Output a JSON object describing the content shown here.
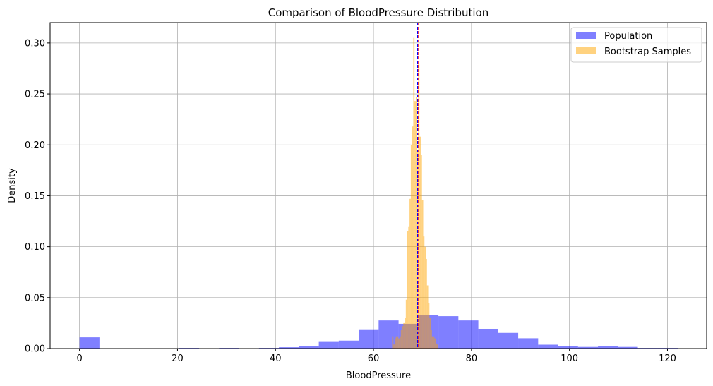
{
  "chart_data": {
    "type": "bar",
    "title": "Comparison of BloodPressure Distribution",
    "xlabel": "BloodPressure",
    "ylabel": "Density",
    "xlim": [
      -6,
      128
    ],
    "ylim": [
      0,
      0.32
    ],
    "xticks": [
      0,
      20,
      40,
      60,
      80,
      100,
      120
    ],
    "yticks": [
      0.0,
      0.05,
      0.1,
      0.15,
      0.2,
      0.25,
      0.3
    ],
    "xtick_labels": [
      "0",
      "20",
      "40",
      "60",
      "80",
      "100",
      "120"
    ],
    "ytick_labels": [
      "0.00",
      "0.05",
      "0.10",
      "0.15",
      "0.20",
      "0.25",
      "0.30"
    ],
    "grid": true,
    "legend_position": "top-right",
    "series": [
      {
        "name": "Population",
        "color": "#0000ff",
        "opacity": 0.5,
        "bin_start": 0,
        "bin_width": 4.07,
        "values": [
          0.011,
          0.0,
          0.0,
          0.0,
          0.0,
          0.0006,
          0.0,
          0.0006,
          0.0,
          0.0006,
          0.0013,
          0.0022,
          0.0072,
          0.0078,
          0.0189,
          0.0276,
          0.0243,
          0.0327,
          0.0318,
          0.0276,
          0.0194,
          0.0154,
          0.0101,
          0.0038,
          0.0023,
          0.0016,
          0.0021,
          0.0016,
          0.0006,
          0.0006
        ]
      },
      {
        "name": "Bootstrap Samples",
        "color": "#ffa500",
        "opacity": 0.5,
        "bin_start": 63.8,
        "bin_width": 0.254,
        "values": [
          0.012,
          0.004,
          0.01,
          0.012,
          0.012,
          0.01,
          0.012,
          0.018,
          0.022,
          0.025,
          0.03,
          0.048,
          0.115,
          0.12,
          0.147,
          0.2,
          0.218,
          0.305,
          0.243,
          0.247,
          0.193,
          0.28,
          0.208,
          0.19,
          0.146,
          0.11,
          0.1,
          0.088,
          0.062,
          0.045,
          0.03,
          0.018,
          0.012,
          0.012,
          0.01,
          0.005,
          0.004
        ]
      }
    ],
    "reference_lines": [
      {
        "x": 69.1,
        "color": "#ff0000",
        "style": "dashed"
      },
      {
        "x": 69.0,
        "color": "#0000ff",
        "style": "dashed"
      }
    ]
  }
}
